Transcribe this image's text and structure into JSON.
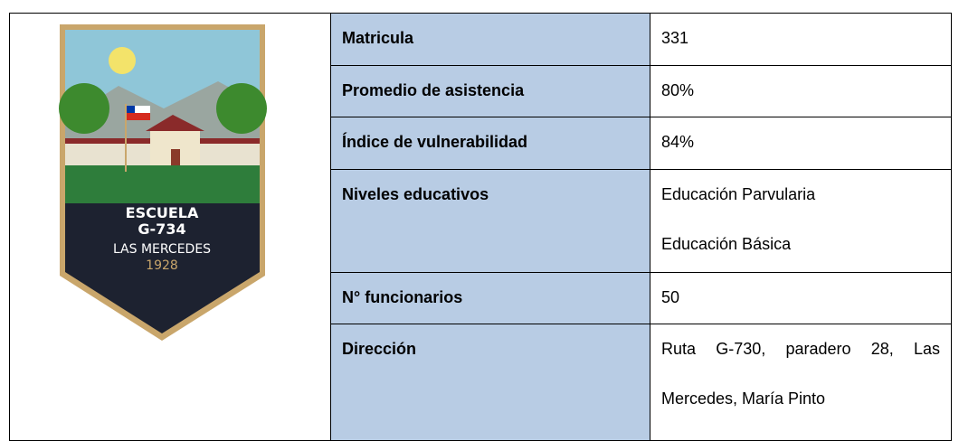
{
  "logo": {
    "lines": [
      "ESCUELA",
      "G-734",
      "LAS MERCEDES",
      "1928"
    ]
  },
  "table": {
    "rows": [
      {
        "label": "Matricula",
        "values": [
          "331"
        ]
      },
      {
        "label": "Promedio de asistencia",
        "values": [
          "80%"
        ]
      },
      {
        "label": "Índice de vulnerabilidad",
        "values": [
          "84%"
        ]
      },
      {
        "label": "Niveles educativos",
        "values": [
          "Educación Parvularia",
          "Educación Básica"
        ]
      },
      {
        "label": "N° funcionarios",
        "values": [
          "50"
        ]
      },
      {
        "label": "Dirección",
        "values": [
          "Ruta G-730, paradero 28, Las Mercedes, María Pinto"
        ]
      }
    ]
  }
}
